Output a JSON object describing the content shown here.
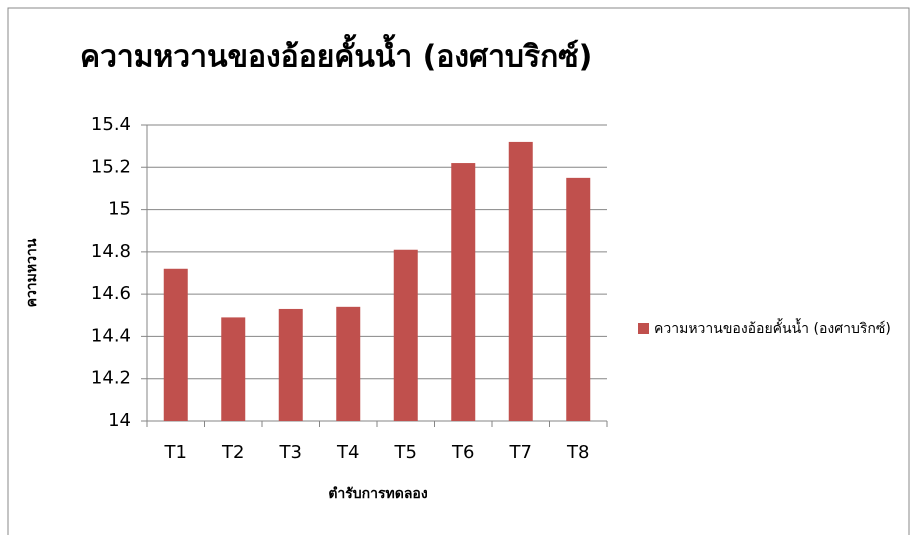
{
  "chart_data": {
    "type": "bar",
    "title": "ความหวานของอ้อยคั้นน้ำ (องศาบริกซ์)",
    "x_label": "ตำรับการทดลอง",
    "y_label": "ความหวาน",
    "categories": [
      "T1",
      "T2",
      "T3",
      "T4",
      "T5",
      "T6",
      "T7",
      "T8"
    ],
    "series": [
      {
        "name": "ความหวานของอ้อยคั้นน้ำ (องศาบริกซ์)",
        "color": "#c0504d",
        "values": [
          14.72,
          14.49,
          14.53,
          14.54,
          14.81,
          15.22,
          15.32,
          15.15
        ]
      }
    ],
    "ylim": [
      14,
      15.4
    ],
    "yticks": [
      14,
      14.2,
      14.4,
      14.6,
      14.8,
      15,
      15.2,
      15.4
    ],
    "grid": true,
    "legend": "right"
  }
}
